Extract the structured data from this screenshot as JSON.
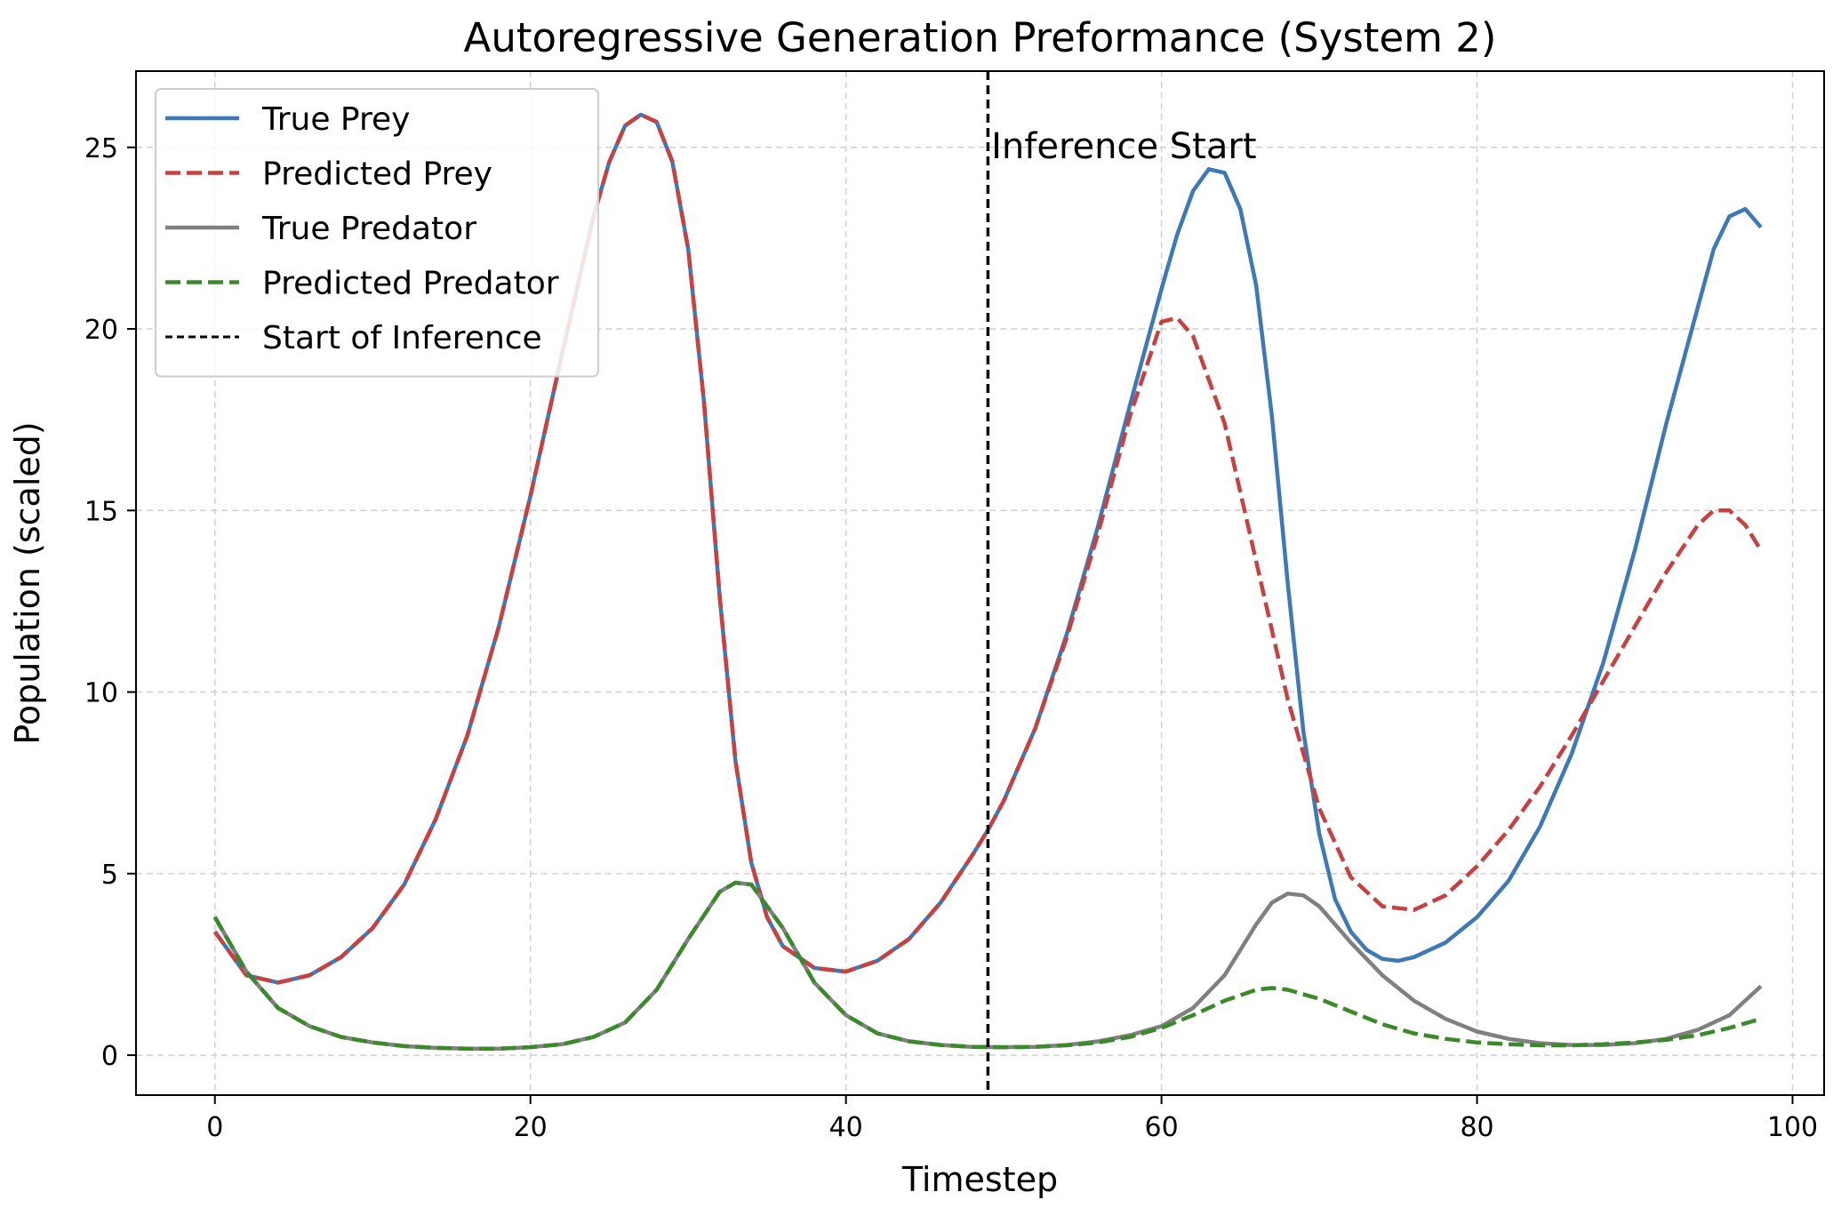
{
  "chart_data": {
    "type": "line",
    "title": "Autoregressive Generation Preformance (System 2)",
    "xlabel": "Timestep",
    "ylabel": "Population (scaled)",
    "xlim": [
      -5,
      102
    ],
    "ylim": [
      -1.1,
      27.1
    ],
    "xticks": [
      0,
      20,
      40,
      60,
      80,
      100
    ],
    "yticks": [
      0,
      5,
      10,
      15,
      20,
      25
    ],
    "grid": true,
    "legend_position": "top-left",
    "annotation": {
      "text": "Inference Start",
      "x": 50,
      "y": 25
    },
    "vline": {
      "name": "Start of Inference",
      "x": 49,
      "color": "#000000",
      "dash": true
    },
    "series": [
      {
        "name": "True Prey",
        "color": "#3d78b9",
        "dash": false,
        "x": [
          0,
          2,
          4,
          6,
          8,
          10,
          12,
          14,
          16,
          18,
          20,
          22,
          24,
          25,
          26,
          27,
          28,
          29,
          30,
          31,
          32,
          33,
          34,
          35,
          36,
          38,
          40,
          42,
          44,
          46,
          48,
          49,
          50,
          52,
          54,
          56,
          58,
          60,
          61,
          62,
          63,
          64,
          65,
          66,
          67,
          68,
          69,
          70,
          71,
          72,
          73,
          74,
          75,
          76,
          78,
          80,
          82,
          84,
          86,
          88,
          90,
          92,
          94,
          95,
          96,
          97,
          98
        ],
        "y": [
          3.4,
          2.2,
          2.0,
          2.2,
          2.7,
          3.5,
          4.7,
          6.5,
          8.8,
          11.8,
          15.4,
          19.3,
          23.1,
          24.6,
          25.6,
          25.9,
          25.7,
          24.6,
          22.2,
          18.0,
          12.6,
          8.1,
          5.3,
          3.8,
          3.0,
          2.4,
          2.3,
          2.6,
          3.2,
          4.2,
          5.5,
          6.2,
          7.0,
          9.0,
          11.6,
          14.6,
          17.9,
          21.1,
          22.6,
          23.8,
          24.4,
          24.3,
          23.3,
          21.2,
          17.6,
          13.0,
          8.9,
          6.1,
          4.3,
          3.4,
          2.9,
          2.65,
          2.6,
          2.7,
          3.1,
          3.8,
          4.8,
          6.3,
          8.3,
          10.8,
          13.9,
          17.4,
          20.6,
          22.2,
          23.1,
          23.3,
          22.8
        ]
      },
      {
        "name": "Predicted Prey",
        "color": "#c94040",
        "dash": true,
        "x": [
          0,
          2,
          4,
          6,
          8,
          10,
          12,
          14,
          16,
          18,
          20,
          22,
          24,
          25,
          26,
          27,
          28,
          29,
          30,
          31,
          32,
          33,
          34,
          35,
          36,
          38,
          40,
          42,
          44,
          46,
          48,
          49,
          50,
          52,
          54,
          56,
          58,
          60,
          61,
          62,
          64,
          66,
          68,
          70,
          72,
          74,
          76,
          78,
          80,
          82,
          84,
          86,
          88,
          90,
          92,
          94,
          95,
          96,
          97,
          98
        ],
        "y": [
          3.4,
          2.2,
          2.0,
          2.2,
          2.7,
          3.5,
          4.7,
          6.5,
          8.8,
          11.8,
          15.4,
          19.3,
          23.1,
          24.6,
          25.6,
          25.9,
          25.7,
          24.6,
          22.2,
          18.0,
          12.6,
          8.1,
          5.3,
          3.8,
          3.0,
          2.4,
          2.3,
          2.6,
          3.2,
          4.2,
          5.5,
          6.2,
          7.0,
          9.0,
          11.5,
          14.4,
          17.6,
          20.2,
          20.3,
          19.8,
          17.4,
          13.6,
          9.8,
          6.8,
          4.9,
          4.1,
          4.0,
          4.4,
          5.2,
          6.2,
          7.4,
          8.8,
          10.3,
          11.8,
          13.3,
          14.6,
          15.0,
          15.0,
          14.6,
          13.9
        ]
      },
      {
        "name": "True Predator",
        "color": "#808080",
        "dash": false,
        "x": [
          0,
          2,
          4,
          6,
          8,
          10,
          12,
          14,
          16,
          18,
          20,
          22,
          24,
          26,
          28,
          30,
          32,
          33,
          34,
          36,
          38,
          40,
          42,
          44,
          46,
          48,
          50,
          52,
          54,
          56,
          58,
          60,
          62,
          64,
          66,
          67,
          68,
          69,
          70,
          72,
          74,
          76,
          78,
          80,
          82,
          84,
          86,
          88,
          90,
          92,
          94,
          96,
          98
        ],
        "y": [
          3.8,
          2.3,
          1.3,
          0.8,
          0.5,
          0.35,
          0.25,
          0.2,
          0.18,
          0.18,
          0.22,
          0.3,
          0.5,
          0.9,
          1.8,
          3.2,
          4.5,
          4.75,
          4.7,
          3.5,
          2.0,
          1.1,
          0.6,
          0.38,
          0.28,
          0.23,
          0.22,
          0.23,
          0.28,
          0.38,
          0.55,
          0.8,
          1.3,
          2.2,
          3.6,
          4.2,
          4.45,
          4.4,
          4.1,
          3.1,
          2.2,
          1.5,
          1.0,
          0.65,
          0.45,
          0.33,
          0.28,
          0.28,
          0.33,
          0.45,
          0.7,
          1.1,
          1.9
        ]
      },
      {
        "name": "Predicted Predator",
        "color": "#3a8a2a",
        "dash": true,
        "x": [
          0,
          2,
          4,
          6,
          8,
          10,
          12,
          14,
          16,
          18,
          20,
          22,
          24,
          26,
          28,
          30,
          32,
          33,
          34,
          36,
          38,
          40,
          42,
          44,
          46,
          48,
          50,
          52,
          54,
          56,
          58,
          60,
          62,
          64,
          66,
          67,
          68,
          70,
          72,
          74,
          76,
          78,
          80,
          82,
          84,
          86,
          88,
          90,
          92,
          94,
          96,
          98
        ],
        "y": [
          3.8,
          2.3,
          1.3,
          0.8,
          0.5,
          0.35,
          0.25,
          0.2,
          0.18,
          0.18,
          0.22,
          0.3,
          0.5,
          0.9,
          1.8,
          3.2,
          4.5,
          4.75,
          4.7,
          3.5,
          2.0,
          1.1,
          0.6,
          0.38,
          0.28,
          0.23,
          0.22,
          0.23,
          0.27,
          0.35,
          0.5,
          0.75,
          1.1,
          1.5,
          1.8,
          1.85,
          1.8,
          1.55,
          1.2,
          0.85,
          0.6,
          0.45,
          0.35,
          0.3,
          0.27,
          0.27,
          0.3,
          0.35,
          0.42,
          0.55,
          0.75,
          1.0
        ]
      }
    ]
  }
}
